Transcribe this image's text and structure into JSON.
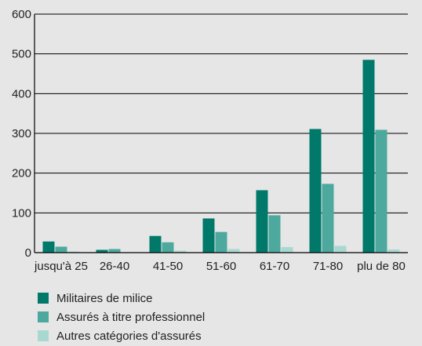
{
  "chart_data": {
    "type": "bar",
    "categories": [
      "jusqu'à 25",
      "26-40",
      "41-50",
      "51-60",
      "61-70",
      "71-80",
      "plu de 80"
    ],
    "series": [
      {
        "name": "Militaires de milice",
        "color": "#00796b",
        "values": [
          28,
          7,
          42,
          86,
          157,
          311,
          485
        ]
      },
      {
        "name": "Assurés à titre professionnel",
        "color": "#4da89d",
        "values": [
          15,
          9,
          26,
          52,
          94,
          173,
          309
        ]
      },
      {
        "name": "Autres catégories d'assurés",
        "color": "#a8d8d0",
        "values": [
          3,
          1,
          5,
          9,
          14,
          17,
          8
        ]
      }
    ],
    "ylim": [
      0,
      600
    ],
    "yticks": [
      0,
      100,
      200,
      300,
      400,
      500,
      600
    ],
    "grid": true,
    "legend": "bottom-left"
  }
}
